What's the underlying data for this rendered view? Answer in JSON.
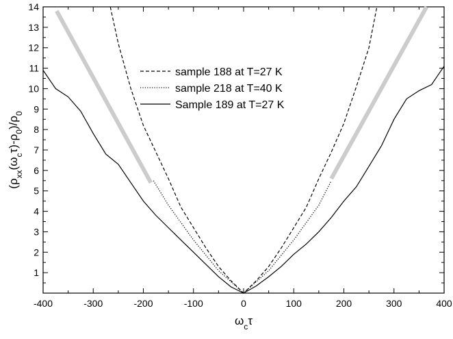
{
  "chart_data": {
    "type": "line",
    "title": "",
    "xlabel": {
      "main": "ω",
      "sub": "c",
      "tail": "τ"
    },
    "ylabel": [
      {
        "t": "(ρ"
      },
      {
        "t": "xx",
        "sub": true
      },
      {
        "t": "(ω"
      },
      {
        "t": "c",
        "sub": true
      },
      {
        "t": "τ)-ρ"
      },
      {
        "t": "0",
        "sub": true
      },
      {
        "t": ")/ρ"
      },
      {
        "t": "0",
        "sub": true
      }
    ],
    "xlim": [
      -400,
      400
    ],
    "ylim": [
      0,
      14
    ],
    "xticks": [
      -400,
      -300,
      -200,
      -100,
      0,
      100,
      200,
      300,
      400
    ],
    "yticks": [
      1,
      2,
      3,
      4,
      5,
      6,
      7,
      8,
      9,
      10,
      11,
      12,
      13,
      14
    ],
    "grid": false,
    "legend_position": "center",
    "series": [
      {
        "name": "sample 188 at T=27 K",
        "style": "dashed",
        "color": "#000000",
        "points": [
          [
            -266,
            14.0
          ],
          [
            -250,
            12.2
          ],
          [
            -225,
            10.0
          ],
          [
            -200,
            8.2
          ],
          [
            -175,
            6.9
          ],
          [
            -150,
            5.6
          ],
          [
            -125,
            4.2
          ],
          [
            -100,
            3.2
          ],
          [
            -75,
            2.2
          ],
          [
            -50,
            1.3
          ],
          [
            -25,
            0.6
          ],
          [
            0,
            0.0
          ],
          [
            25,
            0.6
          ],
          [
            50,
            1.3
          ],
          [
            75,
            2.2
          ],
          [
            100,
            3.2
          ],
          [
            125,
            4.2
          ],
          [
            150,
            5.6
          ],
          [
            175,
            6.9
          ],
          [
            200,
            8.3
          ],
          [
            225,
            10.1
          ],
          [
            250,
            12.0
          ],
          [
            266,
            14.0
          ]
        ]
      },
      {
        "name": "sample 218 at T=40 K",
        "style": "dotted",
        "color": "#000000",
        "points": [
          [
            -180,
            5.5
          ],
          [
            -150,
            4.3
          ],
          [
            -100,
            2.6
          ],
          [
            -50,
            1.1
          ],
          [
            0,
            0.0
          ],
          [
            50,
            1.1
          ],
          [
            100,
            2.6
          ],
          [
            150,
            4.3
          ],
          [
            175,
            5.5
          ]
        ]
      },
      {
        "name": "Sample 189 at T=27 K",
        "style": "solid",
        "color": "#000000",
        "points": [
          [
            -400,
            10.9
          ],
          [
            -375,
            10.0
          ],
          [
            -350,
            9.6
          ],
          [
            -325,
            8.9
          ],
          [
            -300,
            7.8
          ],
          [
            -275,
            6.8
          ],
          [
            -250,
            6.3
          ],
          [
            -225,
            5.4
          ],
          [
            -200,
            4.5
          ],
          [
            -175,
            3.8
          ],
          [
            -150,
            3.2
          ],
          [
            -125,
            2.6
          ],
          [
            -100,
            2.0
          ],
          [
            -75,
            1.4
          ],
          [
            -50,
            0.8
          ],
          [
            -25,
            0.3
          ],
          [
            0,
            0.0
          ],
          [
            25,
            0.35
          ],
          [
            50,
            0.8
          ],
          [
            75,
            1.3
          ],
          [
            100,
            1.9
          ],
          [
            125,
            2.4
          ],
          [
            150,
            3.0
          ],
          [
            175,
            3.7
          ],
          [
            200,
            4.5
          ],
          [
            225,
            5.2
          ],
          [
            250,
            6.2
          ],
          [
            275,
            7.2
          ],
          [
            300,
            8.5
          ],
          [
            325,
            9.5
          ],
          [
            350,
            9.9
          ],
          [
            375,
            10.2
          ],
          [
            400,
            11.1
          ]
        ]
      },
      {
        "name": "",
        "style": "thick-gray-left",
        "color": "#cccccc",
        "points": [
          [
            -373,
            13.8
          ],
          [
            -185,
            5.4
          ]
        ]
      },
      {
        "name": "",
        "style": "thick-gray-right",
        "color": "#cccccc",
        "points": [
          [
            175,
            5.6
          ],
          [
            365,
            14.0
          ]
        ]
      }
    ]
  }
}
